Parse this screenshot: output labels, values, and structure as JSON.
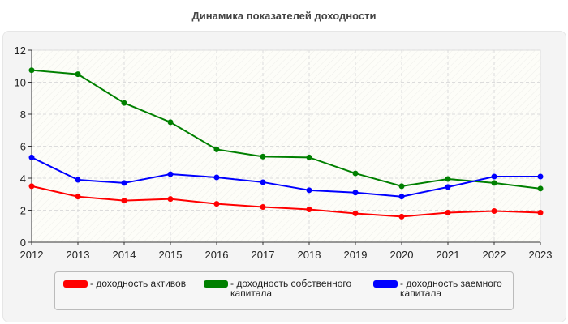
{
  "chart_data": {
    "type": "line",
    "title": "Динамика показателей доходности",
    "categories": [
      "2012",
      "2013",
      "2014",
      "2015",
      "2016",
      "2017",
      "2018",
      "2019",
      "2020",
      "2021",
      "2022",
      "2023"
    ],
    "ylim": [
      0,
      12
    ],
    "yticks": [
      0,
      2,
      4,
      6,
      8,
      10,
      12
    ],
    "grid": true,
    "legend_position": "bottom",
    "series": [
      {
        "name": "- доходность активов",
        "color": "#ff0000",
        "values": [
          3.5,
          2.85,
          2.6,
          2.7,
          2.4,
          2.2,
          2.05,
          1.8,
          1.6,
          1.85,
          1.95,
          1.85
        ]
      },
      {
        "name": "- доходность собственного капитала",
        "color": "#008000",
        "values": [
          10.75,
          10.5,
          8.7,
          7.5,
          5.8,
          5.35,
          5.3,
          4.3,
          3.5,
          3.95,
          3.7,
          3.35
        ]
      },
      {
        "name": "- доходность заемного капитала",
        "color": "#0000ff",
        "values": [
          5.3,
          3.9,
          3.7,
          4.25,
          4.05,
          3.75,
          3.25,
          3.1,
          2.85,
          3.45,
          4.1,
          4.1
        ]
      }
    ]
  }
}
